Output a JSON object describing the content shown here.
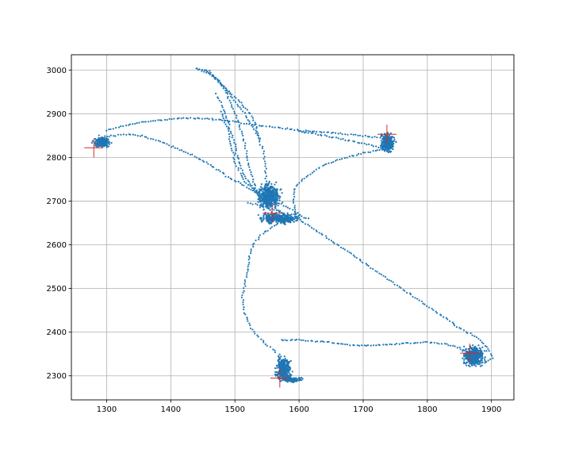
{
  "chart_data": {
    "type": "scatter",
    "title": "",
    "xlabel": "",
    "ylabel": "",
    "xlim": [
      1245,
      1935
    ],
    "ylim": [
      2245,
      3035
    ],
    "grid": true,
    "x_ticks": [
      1300,
      1400,
      1500,
      1600,
      1700,
      1800,
      1900
    ],
    "y_ticks": [
      2300,
      2400,
      2500,
      2600,
      2700,
      2800,
      2900,
      3000
    ],
    "x_tick_labels": [
      "1300",
      "1400",
      "1500",
      "1600",
      "1700",
      "1800",
      "1900"
    ],
    "y_tick_labels": [
      "2300",
      "2400",
      "2500",
      "2600",
      "2700",
      "2800",
      "2900",
      "3000"
    ],
    "colors": {
      "trajectory": "#1f77b4",
      "markers": "#d62728",
      "grid": "#b0b0b0"
    },
    "series": [
      {
        "marker": "dot",
        "segments": [
          {
            "points": [
              [
                1440,
                3003
              ],
              [
                1460,
                2998
              ],
              [
                1475,
                2975
              ],
              [
                1488,
                2945
              ],
              [
                1500,
                2900
              ],
              [
                1510,
                2860
              ],
              [
                1518,
                2810
              ],
              [
                1526,
                2760
              ],
              [
                1534,
                2720
              ],
              [
                1548,
                2690
              ],
              [
                1560,
                2672
              ],
              [
                1572,
                2660
              ],
              [
                1590,
                2662
              ]
            ]
          },
          {
            "points": [
              [
                1470,
                2945
              ],
              [
                1483,
                2910
              ],
              [
                1492,
                2870
              ],
              [
                1500,
                2830
              ],
              [
                1506,
                2790
              ],
              [
                1514,
                2760
              ],
              [
                1526,
                2735
              ],
              [
                1540,
                2710
              ],
              [
                1552,
                2695
              ]
            ]
          },
          {
            "points": [
              [
                1440,
                3003
              ],
              [
                1462,
                2990
              ],
              [
                1478,
                2970
              ],
              [
                1495,
                2940
              ],
              [
                1515,
                2900
              ],
              [
                1532,
                2860
              ],
              [
                1543,
                2820
              ],
              [
                1548,
                2780
              ],
              [
                1550,
                2740
              ],
              [
                1552,
                2710
              ]
            ]
          },
          {
            "points": [
              [
                1455,
                2998
              ],
              [
                1468,
                2985
              ],
              [
                1485,
                2958
              ],
              [
                1510,
                2925
              ],
              [
                1528,
                2890
              ],
              [
                1540,
                2840
              ]
            ]
          },
          {
            "points": [
              [
                1478,
                2905
              ],
              [
                1490,
                2860
              ],
              [
                1495,
                2820
              ],
              [
                1502,
                2780
              ],
              [
                1515,
                2745
              ],
              [
                1530,
                2725
              ]
            ]
          },
          {
            "points": [
              [
                1530,
                2725
              ],
              [
                1545,
                2712
              ],
              [
                1560,
                2700
              ],
              [
                1575,
                2690
              ],
              [
                1590,
                2680
              ],
              [
                1600,
                2668
              ],
              [
                1590,
                2655
              ],
              [
                1575,
                2652
              ],
              [
                1560,
                2660
              ],
              [
                1548,
                2675
              ],
              [
                1540,
                2695
              ]
            ]
          },
          {
            "points": [
              [
                1545,
                2700
              ],
              [
                1558,
                2688
              ],
              [
                1570,
                2676
              ],
              [
                1585,
                2668
              ],
              [
                1598,
                2672
              ],
              [
                1608,
                2662
              ],
              [
                1618,
                2660
              ]
            ]
          },
          {
            "points": [
              [
                1520,
                2695
              ],
              [
                1535,
                2692
              ],
              [
                1550,
                2685
              ],
              [
                1565,
                2678
              ],
              [
                1580,
                2668
              ],
              [
                1592,
                2662
              ],
              [
                1605,
                2660
              ]
            ]
          },
          {
            "points": [
              [
                1592,
                2660
              ],
              [
                1594,
                2680
              ],
              [
                1592,
                2700
              ],
              [
                1592,
                2725
              ],
              [
                1605,
                2750
              ],
              [
                1630,
                2775
              ],
              [
                1660,
                2795
              ],
              [
                1700,
                2810
              ],
              [
                1730,
                2818
              ],
              [
                1748,
                2812
              ]
            ]
          },
          {
            "points": [
              [
                1580,
                2658
              ],
              [
                1558,
                2640
              ],
              [
                1540,
                2622
              ],
              [
                1528,
                2600
              ],
              [
                1522,
                2570
              ],
              [
                1520,
                2540
              ],
              [
                1515,
                2510
              ],
              [
                1512,
                2480
              ],
              [
                1515,
                2445
              ],
              [
                1525,
                2410
              ],
              [
                1540,
                2385
              ],
              [
                1555,
                2365
              ],
              [
                1568,
                2350
              ],
              [
                1570,
                2325
              ],
              [
                1572,
                2300
              ]
            ]
          },
          {
            "points": [
              [
                1572,
                2382
              ],
              [
                1600,
                2382
              ],
              [
                1640,
                2378
              ],
              [
                1680,
                2370
              ],
              [
                1720,
                2370
              ],
              [
                1760,
                2374
              ],
              [
                1800,
                2377
              ],
              [
                1830,
                2372
              ],
              [
                1850,
                2364
              ],
              [
                1865,
                2352
              ]
            ]
          },
          {
            "points": [
              [
                1598,
                2660
              ],
              [
                1650,
                2610
              ],
              [
                1700,
                2560
              ],
              [
                1750,
                2510
              ],
              [
                1800,
                2460
              ],
              [
                1850,
                2410
              ],
              [
                1880,
                2385
              ],
              [
                1895,
                2362
              ],
              [
                1902,
                2340
              ],
              [
                1890,
                2330
              ],
              [
                1870,
                2334
              ]
            ]
          },
          {
            "points": [
              [
                1300,
                2848
              ],
              [
                1330,
                2853
              ],
              [
                1355,
                2850
              ],
              [
                1380,
                2838
              ],
              [
                1410,
                2820
              ],
              [
                1440,
                2800
              ],
              [
                1465,
                2780
              ],
              [
                1490,
                2755
              ],
              [
                1515,
                2735
              ],
              [
                1535,
                2718
              ]
            ]
          },
          {
            "points": [
              [
                1300,
                2862
              ],
              [
                1340,
                2877
              ],
              [
                1380,
                2885
              ],
              [
                1420,
                2890
              ],
              [
                1460,
                2888
              ],
              [
                1500,
                2882
              ],
              [
                1545,
                2872
              ],
              [
                1600,
                2862
              ],
              [
                1650,
                2857
              ],
              [
                1695,
                2850
              ],
              [
                1730,
                2845
              ]
            ]
          },
          {
            "points": [
              [
                1600,
                2860
              ],
              [
                1640,
                2850
              ],
              [
                1680,
                2838
              ],
              [
                1720,
                2825
              ],
              [
                1745,
                2810
              ]
            ]
          }
        ],
        "clusters": [
          {
            "center": [
              1292,
              2835
            ],
            "spread": [
              10,
              10
            ]
          },
          {
            "center": [
              1738,
              2835
            ],
            "spread": [
              9,
              17
            ]
          },
          {
            "center": [
              1553,
              2712
            ],
            "spread": [
              13,
              22
            ]
          },
          {
            "center": [
              1568,
              2660
            ],
            "spread": [
              22,
              9
            ]
          },
          {
            "center": [
              1576,
              2315
            ],
            "spread": [
              9,
              22
            ]
          },
          {
            "center": [
              1590,
              2291
            ],
            "spread": [
              12,
              4
            ]
          },
          {
            "center": [
              1873,
              2345
            ],
            "spread": [
              13,
              18
            ]
          }
        ]
      },
      {
        "marker": "plus",
        "points": [
          [
            1280,
            2822
          ],
          [
            1737,
            2853
          ],
          [
            1558,
            2672
          ],
          [
            1570,
            2295
          ],
          [
            1866,
            2352
          ]
        ]
      }
    ]
  }
}
